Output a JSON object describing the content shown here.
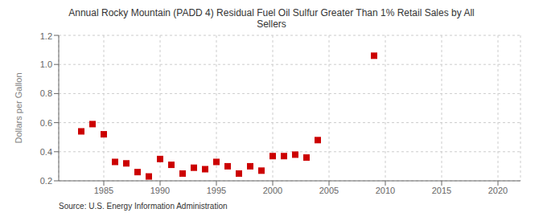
{
  "chart_data": {
    "type": "scatter",
    "title": "Annual Rocky Mountain (PADD 4) Residual Fuel Oil Sulfur Greater Than 1% Retail Sales by All\nSellers",
    "y_label": "Dollars per Gallon",
    "annotations": [
      "Source: U.S. Energy Information Administration"
    ],
    "x": [
      1983,
      1984,
      1985,
      1986,
      1987,
      1988,
      1989,
      1990,
      1991,
      1992,
      1993,
      1994,
      1995,
      1996,
      1997,
      1998,
      1999,
      2000,
      2001,
      2002,
      2003,
      2004,
      2009
    ],
    "values": [
      0.54,
      0.59,
      0.52,
      0.33,
      0.32,
      0.26,
      0.23,
      0.35,
      0.31,
      0.25,
      0.29,
      0.28,
      0.33,
      0.3,
      0.25,
      0.3,
      0.27,
      0.37,
      0.37,
      0.38,
      0.36,
      0.48,
      1.06
    ],
    "color": "#cc0000",
    "marker": "square",
    "xlim": [
      1981,
      2022
    ],
    "xticks": [
      1985,
      1990,
      1995,
      2000,
      2005,
      2010,
      2015,
      2020
    ],
    "ylim": [
      0.2,
      1.2
    ],
    "yticks": [
      0.2,
      0.4,
      0.6,
      0.8,
      {
        "value": 1,
        "label": "1.0"
      },
      1.2
    ],
    "grid": true
  }
}
